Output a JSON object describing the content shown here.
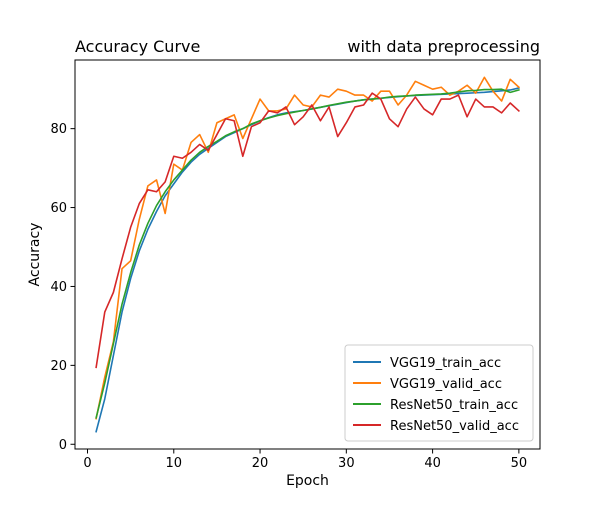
{
  "chart_data": {
    "type": "line",
    "title_left": "Accuracy Curve",
    "title_right": "with data preprocessing",
    "xlabel": "Epoch",
    "ylabel": "Accuracy",
    "xlim": [
      -1.45,
      52.45
    ],
    "ylim": [
      -1.2,
      97.4
    ],
    "xticks": [
      0,
      10,
      20,
      30,
      40,
      50
    ],
    "yticks": [
      0,
      20,
      40,
      60,
      80
    ],
    "grid": false,
    "legend_position": "lower-right",
    "x": [
      1,
      2,
      3,
      4,
      5,
      6,
      7,
      8,
      9,
      10,
      11,
      12,
      13,
      14,
      15,
      16,
      17,
      18,
      19,
      20,
      21,
      22,
      23,
      24,
      25,
      26,
      27,
      28,
      29,
      30,
      31,
      32,
      33,
      34,
      35,
      36,
      37,
      38,
      39,
      40,
      41,
      42,
      43,
      44,
      45,
      46,
      47,
      48,
      49,
      50
    ],
    "series": [
      {
        "name": "VGG19_train_acc",
        "color": "#1f77b4",
        "values": [
          3.2,
          11.5,
          22.5,
          33.5,
          42.0,
          49.0,
          54.5,
          59.0,
          63.0,
          66.0,
          69.0,
          71.5,
          73.5,
          75.0,
          76.5,
          78.0,
          79.0,
          80.0,
          81.0,
          82.0,
          82.8,
          83.5,
          84.0,
          84.3,
          84.6,
          85.0,
          85.4,
          85.8,
          86.2,
          86.6,
          87.0,
          87.3,
          87.5,
          87.7,
          87.9,
          88.1,
          88.3,
          88.4,
          88.5,
          88.6,
          88.7,
          88.8,
          88.9,
          89.0,
          89.1,
          89.2,
          89.4,
          89.6,
          89.8,
          90.3
        ]
      },
      {
        "name": "VGG19_valid_acc",
        "color": "#ff7f0e",
        "values": [
          6.5,
          17.0,
          26.0,
          44.5,
          46.5,
          57.0,
          65.5,
          67.0,
          58.5,
          71.0,
          69.5,
          76.5,
          78.5,
          74.0,
          81.5,
          82.5,
          83.5,
          77.5,
          82.5,
          87.5,
          84.5,
          84.5,
          85.0,
          88.5,
          86.0,
          85.5,
          88.5,
          88.0,
          90.0,
          89.5,
          88.5,
          88.5,
          87.0,
          89.5,
          89.5,
          86.0,
          88.5,
          92.0,
          91.0,
          90.0,
          90.5,
          88.5,
          89.5,
          91.0,
          89.0,
          93.0,
          89.5,
          87.0,
          92.5,
          90.5
        ]
      },
      {
        "name": "ResNet50_train_acc",
        "color": "#2ca02c",
        "values": [
          6.7,
          15.5,
          25.5,
          35.5,
          43.5,
          50.5,
          56.0,
          60.5,
          64.0,
          67.0,
          69.5,
          72.0,
          74.0,
          75.5,
          76.8,
          78.2,
          79.2,
          80.0,
          81.2,
          82.0,
          82.7,
          83.3,
          83.8,
          84.2,
          84.6,
          85.0,
          85.4,
          85.9,
          86.3,
          86.7,
          87.0,
          87.3,
          87.5,
          87.7,
          88.0,
          88.2,
          88.3,
          88.5,
          88.6,
          88.7,
          88.8,
          89.0,
          89.3,
          89.6,
          89.7,
          89.9,
          89.9,
          90.0,
          89.2,
          89.8
        ]
      },
      {
        "name": "ResNet50_valid_acc",
        "color": "#d62728",
        "values": [
          19.5,
          33.5,
          38.5,
          47.0,
          55.0,
          61.0,
          64.5,
          64.0,
          66.5,
          73.0,
          72.5,
          74.0,
          76.0,
          74.5,
          78.5,
          82.5,
          82.0,
          73.0,
          80.5,
          81.5,
          84.5,
          84.0,
          85.5,
          81.0,
          83.0,
          86.0,
          82.0,
          85.5,
          78.0,
          81.5,
          85.5,
          86.0,
          89.0,
          87.5,
          82.5,
          80.5,
          85.0,
          88.0,
          85.0,
          83.5,
          87.5,
          87.5,
          88.5,
          83.0,
          87.5,
          85.5,
          85.5,
          84.0,
          86.5,
          84.5
        ]
      }
    ]
  }
}
